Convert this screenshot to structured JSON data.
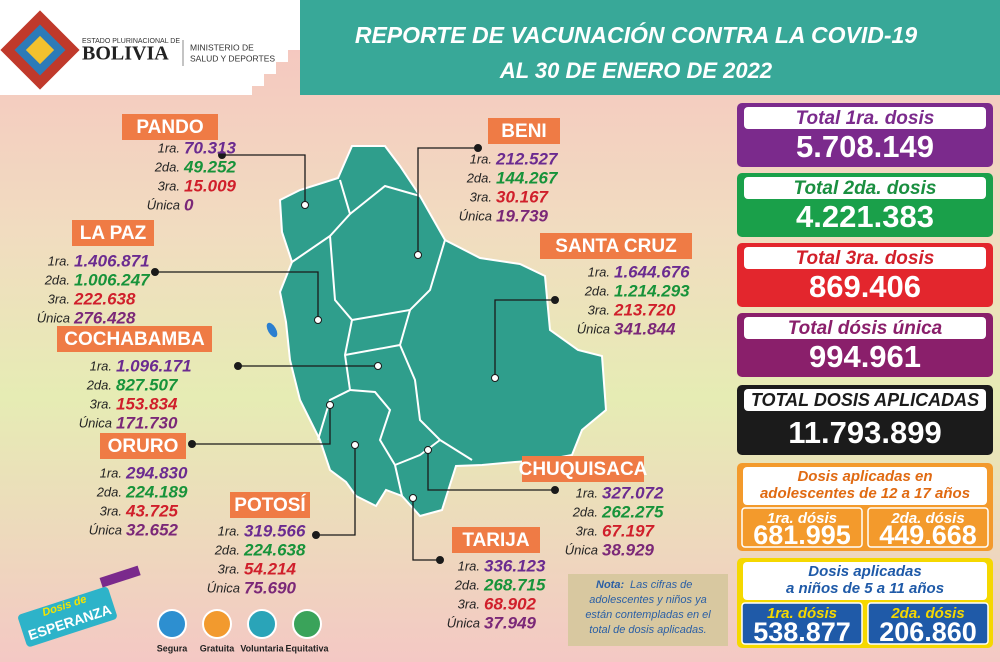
{
  "header": {
    "logo_top": "ESTADO PLURINACIONAL DE",
    "logo_name": "BOLIVIA",
    "ministry": [
      "MINISTERIO DE",
      "SALUD Y DEPORTES"
    ],
    "title": "REPORTE DE VACUNACIÓN CONTRA LA COVID-19",
    "subtitle": "AL 30 DE ENERO DE 2022"
  },
  "departments": [
    {
      "name": "PANDO",
      "doses": [
        {
          "label": "1ra.",
          "value": "70.313"
        },
        {
          "label": "2da.",
          "value": "49.252"
        },
        {
          "label": "3ra.",
          "value": "15.009"
        },
        {
          "label": "Única",
          "value": "0"
        }
      ]
    },
    {
      "name": "BENI",
      "doses": [
        {
          "label": "1ra.",
          "value": "212.527"
        },
        {
          "label": "2da.",
          "value": "144.267"
        },
        {
          "label": "3ra.",
          "value": "30.167"
        },
        {
          "label": "Única",
          "value": "19.739"
        }
      ]
    },
    {
      "name": "LA PAZ",
      "doses": [
        {
          "label": "1ra.",
          "value": "1.406.871"
        },
        {
          "label": "2da.",
          "value": "1.006.247"
        },
        {
          "label": "3ra.",
          "value": "222.638"
        },
        {
          "label": "Única",
          "value": "276.428"
        }
      ]
    },
    {
      "name": "SANTA CRUZ",
      "doses": [
        {
          "label": "1ra.",
          "value": "1.644.676"
        },
        {
          "label": "2da.",
          "value": "1.214.293"
        },
        {
          "label": "3ra.",
          "value": "213.720"
        },
        {
          "label": "Única",
          "value": "341.844"
        }
      ]
    },
    {
      "name": "COCHABAMBA",
      "doses": [
        {
          "label": "1ra.",
          "value": "1.096.171"
        },
        {
          "label": "2da.",
          "value": "827.507"
        },
        {
          "label": "3ra.",
          "value": "153.834"
        },
        {
          "label": "Única",
          "value": "171.730"
        }
      ]
    },
    {
      "name": "ORURO",
      "doses": [
        {
          "label": "1ra.",
          "value": "294.830"
        },
        {
          "label": "2da.",
          "value": "224.189"
        },
        {
          "label": "3ra.",
          "value": "43.725"
        },
        {
          "label": "Única",
          "value": "32.652"
        }
      ]
    },
    {
      "name": "POTOSÍ",
      "doses": [
        {
          "label": "1ra.",
          "value": "319.566"
        },
        {
          "label": "2da.",
          "value": "224.638"
        },
        {
          "label": "3ra.",
          "value": "54.214"
        },
        {
          "label": "Única",
          "value": "75.690"
        }
      ]
    },
    {
      "name": "CHUQUISACA",
      "doses": [
        {
          "label": "1ra.",
          "value": "327.072"
        },
        {
          "label": "2da.",
          "value": "262.275"
        },
        {
          "label": "3ra.",
          "value": "67.197"
        },
        {
          "label": "Única",
          "value": "38.929"
        }
      ]
    },
    {
      "name": "TARIJA",
      "doses": [
        {
          "label": "1ra.",
          "value": "336.123"
        },
        {
          "label": "2da.",
          "value": "268.715"
        },
        {
          "label": "3ra.",
          "value": "68.902"
        },
        {
          "label": "Única",
          "value": "37.949"
        }
      ]
    }
  ],
  "totals": [
    {
      "label": "Total 1ra. dosis",
      "value": "5.708.149"
    },
    {
      "label": "Total 2da. dosis",
      "value": "4.221.383"
    },
    {
      "label": "Total 3ra. dosis",
      "value": "869.406"
    },
    {
      "label": "Total dósis única",
      "value": "994.961"
    },
    {
      "label": "TOTAL DOSIS APLICADAS",
      "value": "11.793.899"
    }
  ],
  "adolescents": {
    "title": [
      "Dosis aplicadas en",
      "adolescentes de 12 a 17 años"
    ],
    "doses": [
      {
        "label": "1ra. dósis",
        "value": "681.995"
      },
      {
        "label": "2da. dósis",
        "value": "449.668"
      }
    ]
  },
  "children": {
    "title": [
      "Dosis aplicadas",
      "a niños de 5 a 11 años"
    ],
    "doses": [
      {
        "label": "1ra. dósis",
        "value": "538.877"
      },
      {
        "label": "2da. dósis",
        "value": "206.860"
      }
    ]
  },
  "note": {
    "label": "Nota:",
    "lines": [
      "Las cifras de",
      "adolescentes y niños ya",
      "están contempladas en el",
      "total de dosis aplicadas."
    ]
  },
  "campaign": {
    "logo": [
      "Dosis de",
      "ESPERANZA"
    ],
    "icons": [
      "Segura",
      "Gratuita",
      "Voluntaria",
      "Equitativa"
    ]
  }
}
